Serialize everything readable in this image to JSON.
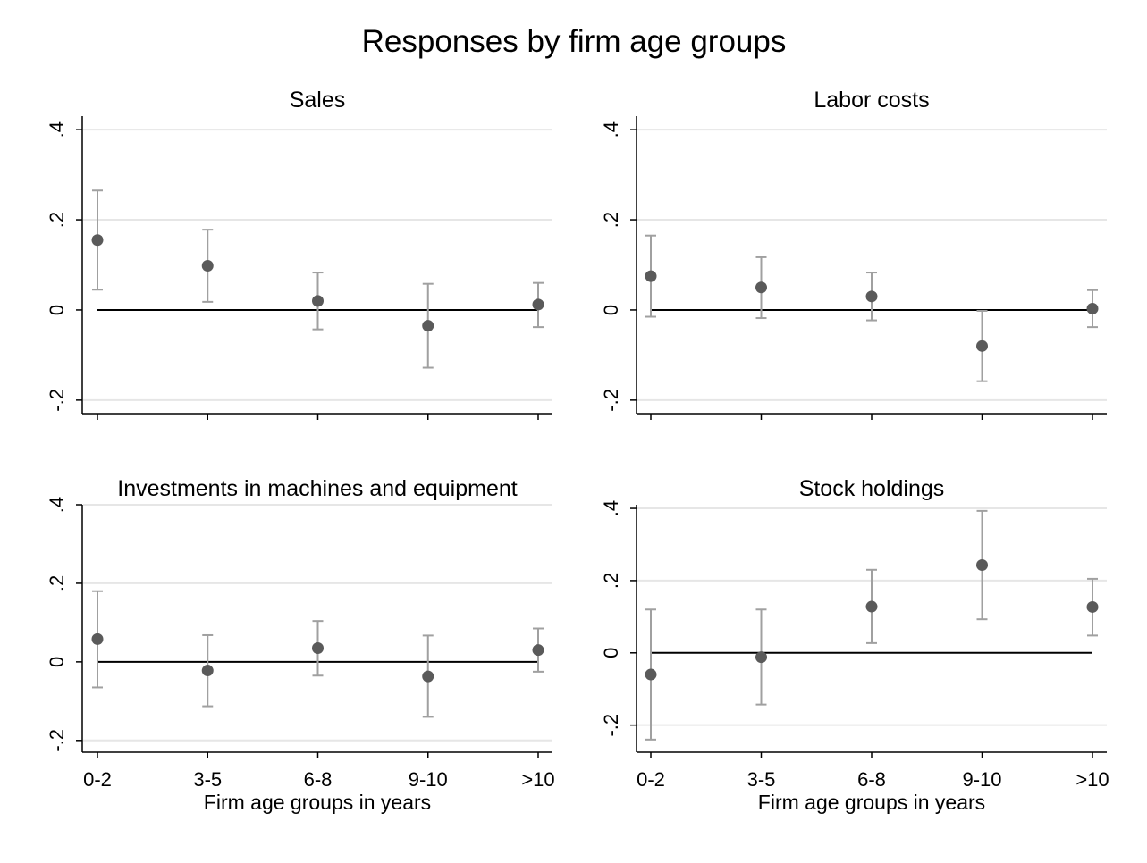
{
  "title": "Responses by firm age groups",
  "colors": {
    "background": "#ffffff",
    "axis": "#000000",
    "grid": "#e6e6e6",
    "zero_line": "#000000",
    "marker": "#5a5a5a",
    "error_bar": "#a0a0a0"
  },
  "chart_data": [
    {
      "type": "scatter",
      "title": "Sales",
      "categories": [
        "0-2",
        "3-5",
        "6-8",
        "9-10",
        ">10"
      ],
      "estimates": [
        0.155,
        0.098,
        0.02,
        -0.035,
        0.012
      ],
      "ci_low": [
        0.045,
        0.018,
        -0.043,
        -0.128,
        -0.038
      ],
      "ci_high": [
        0.265,
        0.178,
        0.083,
        0.058,
        0.06
      ],
      "ylim": [
        -0.23,
        0.43
      ],
      "yticks": [
        -0.2,
        0,
        0.2,
        0.4
      ],
      "ytick_labels": [
        "-.2",
        "0",
        ".2",
        ".4"
      ],
      "grid": true,
      "reference_line": 0,
      "show_xtick_labels": false,
      "xlabel": ""
    },
    {
      "type": "scatter",
      "title": "Labor costs",
      "categories": [
        "0-2",
        "3-5",
        "6-8",
        "9-10",
        ">10"
      ],
      "estimates": [
        0.075,
        0.05,
        0.03,
        -0.08,
        0.003
      ],
      "ci_low": [
        -0.015,
        -0.018,
        -0.023,
        -0.158,
        -0.038
      ],
      "ci_high": [
        0.165,
        0.117,
        0.083,
        -0.002,
        0.044
      ],
      "ylim": [
        -0.23,
        0.43
      ],
      "yticks": [
        -0.2,
        0,
        0.2,
        0.4
      ],
      "ytick_labels": [
        "-.2",
        "0",
        ".2",
        ".4"
      ],
      "grid": true,
      "reference_line": 0,
      "show_xtick_labels": false,
      "xlabel": ""
    },
    {
      "type": "scatter",
      "title": "Investments in machines and equipment",
      "categories": [
        "0-2",
        "3-5",
        "6-8",
        "9-10",
        ">10"
      ],
      "estimates": [
        0.058,
        -0.022,
        0.035,
        -0.037,
        0.03
      ],
      "ci_low": [
        -0.065,
        -0.113,
        -0.035,
        -0.14,
        -0.025
      ],
      "ci_high": [
        0.18,
        0.068,
        0.104,
        0.067,
        0.085
      ],
      "ylim": [
        -0.23,
        0.4
      ],
      "yticks": [
        -0.2,
        0,
        0.2,
        0.4
      ],
      "ytick_labels": [
        "-.2",
        "0",
        ".2",
        ".4"
      ],
      "grid": true,
      "reference_line": 0,
      "show_xtick_labels": true,
      "xlabel": "Firm age groups in years"
    },
    {
      "type": "scatter",
      "title": "Stock holdings",
      "categories": [
        "0-2",
        "3-5",
        "6-8",
        "9-10",
        ">10"
      ],
      "estimates": [
        -0.06,
        -0.012,
        0.128,
        0.243,
        0.127
      ],
      "ci_low": [
        -0.24,
        -0.143,
        0.027,
        0.093,
        0.048
      ],
      "ci_high": [
        0.12,
        0.12,
        0.23,
        0.393,
        0.205
      ],
      "ylim": [
        -0.275,
        0.41
      ],
      "yticks": [
        -0.2,
        0,
        0.2,
        0.4
      ],
      "ytick_labels": [
        "-.2",
        "0",
        ".2",
        ".4"
      ],
      "grid": true,
      "reference_line": 0,
      "show_xtick_labels": true,
      "xlabel": "Firm age groups in years"
    }
  ]
}
